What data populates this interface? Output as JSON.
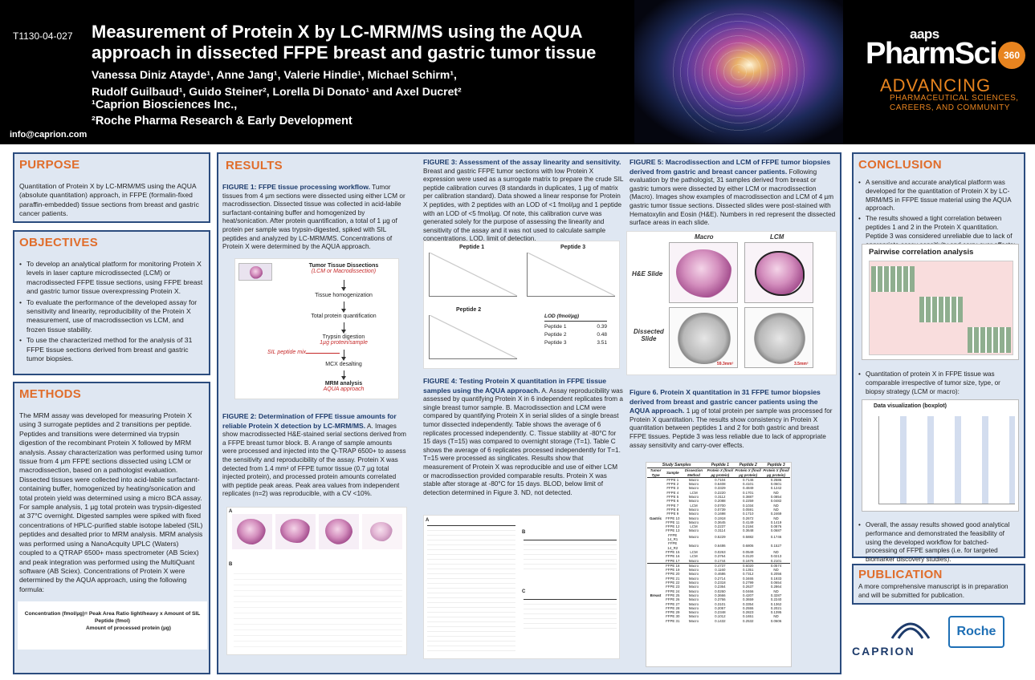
{
  "header": {
    "poster_id": "T1130-04-027",
    "title_line1": "Measurement of Protein X by LC-MRM/MS using the AQUA",
    "title_line2": "approach in dissected FFPE breast and gastric tumor tissue",
    "authors_line1": "Vanessa Diniz Atayde¹, Anne Jang¹, Valerie Hindie¹, Michael Schirm¹,",
    "authors_line2": "Rudolf Guilbaud¹, Guido Steiner², Lorella Di Donato¹ and Axel Ducret²",
    "affil_1": "¹Caprion Biosciences Inc.,",
    "affil_2": "²Roche Pharma Research & Early Development",
    "email": "info@caprion.com",
    "logo_aaps": "aaps",
    "logo_pharmsci": "PharmSci",
    "logo_360": "360",
    "advancing": "ADVANCING",
    "advancing_sub1": "PHARMACEUTICAL SCIENCES,",
    "advancing_sub2": "CAREERS, AND COMMUNITY"
  },
  "purpose": {
    "title": "PURPOSE",
    "text": "Quantitation of Protein X by LC-MRM/MS using the AQUA (absolute quantitation) approach, in FFPE (formalin-fixed paraffin-embedded) tissue sections from breast and gastric cancer patients."
  },
  "objectives": {
    "title": "OBJECTIVES",
    "items": [
      "To develop an analytical platform for monitoring Protein X levels in laser capture microdissected (LCM) or macrodissected FFPE tissue sections, using FFPE breast and gastric tumor tissue overexpressing Protein X.",
      "To evaluate the performance of the developed assay for sensitivity and linearity, reproducibility of the Protein X measurement, use of macrodissection vs LCM, and frozen tissue stability.",
      "To use the characterized method for the analysis of 31 FFPE tissue sections derived from breast and gastric tumor biopsies."
    ]
  },
  "methods": {
    "title": "METHODS",
    "text": "The MRM assay was developed for measuring Protein X using 3 surrogate peptides and 2 transitions per peptide. Peptides and transitions were determined via trypsin digestion of the recombinant Protein X followed by MRM analysis. Assay characterization was performed using tumor tissue from 4 µm FFPE sections dissected using LCM or macrodissection, based on a pathologist evaluation. Dissected tissues were collected into acid-labile surfactant-containing buffer, homogenized by heating/sonication and total protein yield was determined using a micro BCA assay. For sample analysis, 1 µg total protein was trypsin-digested at 37°C overnight. Digested samples were spiked with fixed concentrations of HPLC-purified stable isotope labeled (SIL) peptides and desalted prior to MRM analysis. MRM analysis was performed using a NanoAcquity UPLC (Waters) coupled to a QTRAP 6500+ mass spectrometer (AB Sciex) and peak integration was performed using the MultiQuant software (AB Sciex). Concentrations of Protein X were determined by the AQUA approach, using the following formula:",
    "formula_line1": "Concentration (fmol/µg)= Peak Area Ratio light/heavy x Amount of SIL Peptide (fmol)",
    "formula_line2": "Amount of processed protein (µg)"
  },
  "results": {
    "title": "RESULTS",
    "fig1_title": "FIGURE 1: FFPE tissue processing workflow.",
    "fig1_text": "Tumor tissues from 4 µm sections were dissected using either LCM or macrodissection. Dissected tissue was collected in acid-labile surfactant-containing buffer and homogenized by heat/sonication. After protein quantification, a total of 1 µg of protein per sample was trypsin-digested, spiked with SIL peptides and analyzed by LC-MRM/MS. Concentrations of Protein X were determined by the AQUA approach.",
    "flow": {
      "step1": "Tumor Tissue Dissections",
      "step1_sub": "(LCM or Macrodissection)",
      "step2": "Tissue homogenization",
      "step3": "Total protein quantification",
      "step4": "Trypsin digestion",
      "step4_sub": "1µg protein/sample",
      "sil": "SIL peptide mix",
      "step5": "MCX desalting",
      "step6": "MRM analysis",
      "step6_sub": "AQUA approach"
    },
    "fig2_title": "FIGURE 2: Determination of FFPE tissue amounts for reliable Protein X detection by LC-MRM/MS.",
    "fig2_text": "A. Images show macrodissected H&E-stained serial sections derived from a FFPE breast tumor block. B. A range of sample amounts were processed and injected into the Q-TRAP 6500+ to assess the sensitivity and reproducibility of the assay. Protein X was detected from 1.4 mm² of FFPE tumor tissue (0.7 µg total injected protein), and processed protein amounts correlated with peptide peak areas. Peak area values from independent replicates (n=2) was reproducible, with a CV <10%.",
    "fig2_labels": {
      "a": "A",
      "b": "B"
    },
    "fig3_title": "FIGURE 3: Assessment of the assay linearity and sensitivity.",
    "fig3_text": "Breast and gastric FFPE tumor sections with low Protein X expression were used as a surrogate matrix to prepare the crude SIL peptide calibration curves (8 standards in duplicates, 1 µg of matrix per calibration standard). Data showed a linear response for Protein X peptides, with 2 peptides with an LOD of <1 fmol/µg and 1 peptide with an LOD of <5 fmol/µg. Of note, this calibration curve was generated solely for the purpose of assessing the linearity and sensitivity of the assay and it was not used to calculate sample concentrations. LOD, limit of detection.",
    "fig3_plots": {
      "p1": "Peptide 1",
      "p2": "Peptide 2",
      "p3": "Peptide 3"
    },
    "lod_table": {
      "header": "LOD (fmol/µg)",
      "rows": [
        {
          "peptide": "Peptide 1",
          "value": "0.39"
        },
        {
          "peptide": "Peptide 2",
          "value": "0.48"
        },
        {
          "peptide": "Peptide 3",
          "value": "3.51"
        }
      ]
    },
    "fig4_title": "FIGURE 4: Testing Protein X quantitation in FFPE tissue samples using the AQUA approach.",
    "fig4_text": "A. Assay reproducibility was assessed by quantifying Protein X in 6 independent replicates from a single breast tumor sample. B. Macrodissection and LCM were compared by quantifying Protein X in serial slides of a single breast tumor dissected independently. Table shows the average of 6 replicates processed independently. C. Tissue stability at -80°C for 15 days (T=15) was compared to overnight storage (T=1). Table C shows the average of 6 replicates processed independently for T=1. T=15 were processed as singlicates. Results show that measurement of Protein X was reproducible and use of either LCM or macrodissection provided comparable results. Protein X was stable after storage at -80°C for 15 days. BLOD, below limit of detection determined in Figure 3. ND, not detected.",
    "fig4_labels": {
      "a": "A",
      "b": "B",
      "c": "C"
    },
    "fig5_title": "FIGURE 5: Macrodissection and LCM of FFPE tumor biopsies derived from gastric and breast cancer patients.",
    "fig5_text": "Following evaluation by the pathologist, 31 samples derived from breast or gastric tumors were dissected by either LCM or macrodissection (Macro). Images show examples of macrodissection and LCM of 4 µm gastric tumor tissue sections. Dissected slides were post-stained with Hematoxylin and Eosin (H&E). Numbers in red represent the dissected surface areas in each slide.",
    "fig5_labels": {
      "macro": "Macro",
      "lcm": "LCM",
      "he": "H&E Slide",
      "dissected_line1": "Dissected",
      "dissected_line2": "Slide",
      "area1": "59.3mm²",
      "area2": "3.5mm²"
    },
    "fig6_title": "Figure 6. Protein X quantitation in 31 FFPE tumor biopsies derived from breast and gastric cancer patients using the AQUA approach.",
    "fig6_text": "1 µg of total protein per sample was processed for Protein X quantitation. The results show consistency in Protein X quantitation between peptides 1 and 2 for both gastric and breast FFPE tissues. Peptide 3 was less reliable due to lack of appropriate assay sensitivity and carry-over effects.",
    "study_table": {
      "header_group": "Study Samples",
      "peptide_headers": [
        "Peptide 1",
        "Peptide 2",
        "Peptide 3"
      ],
      "col_headers": [
        "Tumor Type",
        "Sample",
        "Dissection Method",
        "Protein X (fmol/µg protein)",
        "Protein X (fmol/µg protein)",
        "Protein X (fmol/µg protein)"
      ],
      "gastric_label": "Gastric",
      "breast_label": "Breast",
      "gastric_rows": [
        [
          "FFPE 1",
          "Macro",
          "0.7104",
          "0.7146",
          "0.2586"
        ],
        [
          "FFPE 2",
          "Macro",
          "0.6408",
          "0.4101",
          "0.0601"
        ],
        [
          "FFPE 3",
          "Macro",
          "0.3329",
          "0.4849",
          "0.1242"
        ],
        [
          "FFPE 4",
          "LCM",
          "0.2220",
          "0.1701",
          "ND"
        ],
        [
          "FFPE 5",
          "Macro",
          "0.3112",
          "0.3887",
          "0.0854"
        ],
        [
          "FFPE 6",
          "Macro",
          "0.2088",
          "0.2259",
          "0.0482"
        ],
        [
          "FFPE 7",
          "LCM",
          "0.0700",
          "0.1034",
          "ND"
        ],
        [
          "FFPE 8",
          "Macro",
          "0.0739",
          "0.0591",
          "ND"
        ],
        [
          "FFPE 9",
          "Macro",
          "0.1698",
          "0.1710",
          "0.2469"
        ],
        [
          "FFPE 10",
          "Macro",
          "0.1918",
          "0.2672",
          "ND"
        ],
        [
          "FFPE 11",
          "Macro",
          "0.3645",
          "0.4149",
          "0.1419"
        ],
        [
          "FFPE 12",
          "LCM",
          "0.2237",
          "0.2184",
          "0.0876"
        ],
        [
          "FFPE 13",
          "Macro",
          "0.3114",
          "0.3648",
          "0.0687"
        ],
        [
          "FFPE 14_R1",
          "Macro",
          "0.5229",
          "0.5882",
          "0.1746"
        ],
        [
          "FFPE 14_R2",
          "Macro",
          "0.6486",
          "0.6806",
          "0.1527"
        ],
        [
          "FFPE 15",
          "LCM",
          "0.0263",
          "0.0549",
          "ND"
        ],
        [
          "FFPE 16",
          "LCM",
          "0.3764",
          "0.3120",
          "0.0213"
        ],
        [
          "FFPE 17",
          "Macro",
          "0.1744",
          "0.1676",
          "0.2101"
        ]
      ],
      "breast_rows": [
        [
          "FFPE 18",
          "Macro",
          "0.4737",
          "0.6020",
          "0.0574"
        ],
        [
          "FFPE 19",
          "Macro",
          "0.1160",
          "0.1351",
          "ND"
        ],
        [
          "FFPE 20",
          "Macro",
          "0.4686",
          "0.7312",
          "0.2056"
        ],
        [
          "FFPE 21",
          "Macro",
          "0.2714",
          "0.3465",
          "0.1933"
        ],
        [
          "FFPE 22",
          "Macro",
          "0.2318",
          "0.2799",
          "0.0654"
        ],
        [
          "FFPE 23",
          "Macro",
          "0.2364",
          "0.2637",
          "0.2864"
        ],
        [
          "FFPE 24",
          "Macro",
          "0.0260",
          "0.0466",
          "ND"
        ],
        [
          "FFPE 25",
          "Macro",
          "0.3666",
          "0.4207",
          "0.3287"
        ],
        [
          "FFPE 26",
          "Macro",
          "0.3766",
          "0.3659",
          "0.2240"
        ],
        [
          "FFPE 27",
          "Macro",
          "0.3101",
          "0.3354",
          "0.1362"
        ],
        [
          "FFPE 28",
          "Macro",
          "0.2057",
          "0.2555",
          "0.2021"
        ],
        [
          "FFPE 29",
          "Macro",
          "0.2348",
          "0.2823",
          "0.1395"
        ],
        [
          "FFPE 30",
          "Macro",
          "0.1012",
          "0.1651",
          "ND"
        ],
        [
          "FFPE 31",
          "Macro",
          "0.1432",
          "0.2532",
          "0.0606"
        ]
      ]
    }
  },
  "conclusion": {
    "title": "CONCLUSION",
    "item1": "A sensitive and accurate analytical platform was developed for the quantitation of Protein X by LC-MRM/MS in FFPE tissue material using the AQUA approach.",
    "item2": "The results showed a tight correlation between peptides 1 and 2 in the Protein X quantitation. Peptide 3 was considered unreliable due to lack of appropriate assay sensitivity and carry-over effects:",
    "pairwise_title": "Pairwise correlation analysis",
    "item3": "Quantitation of protein X in FFPE tissue was comparable irrespective of tumor size, type, or biopsy strategy (LCM or macro):",
    "boxplot_title": "Data visualization (boxplot)",
    "item4": "Overall, the assay results showed good analytical performance and demonstrated the feasibility of using the developed workflow for batched-processing of FFPE samples (i.e. for targeted biomarker discovery studies)."
  },
  "publication": {
    "title": "PUBLICATION",
    "text": "A more comprehensive manuscript is in preparation and will be submitted for publication."
  },
  "logos": {
    "caprion": "CAPRION",
    "roche": "Roche"
  },
  "colors": {
    "navy": "#2b4c7e",
    "orange": "#e06d2b",
    "panel_blue": "#dfe7f2"
  }
}
